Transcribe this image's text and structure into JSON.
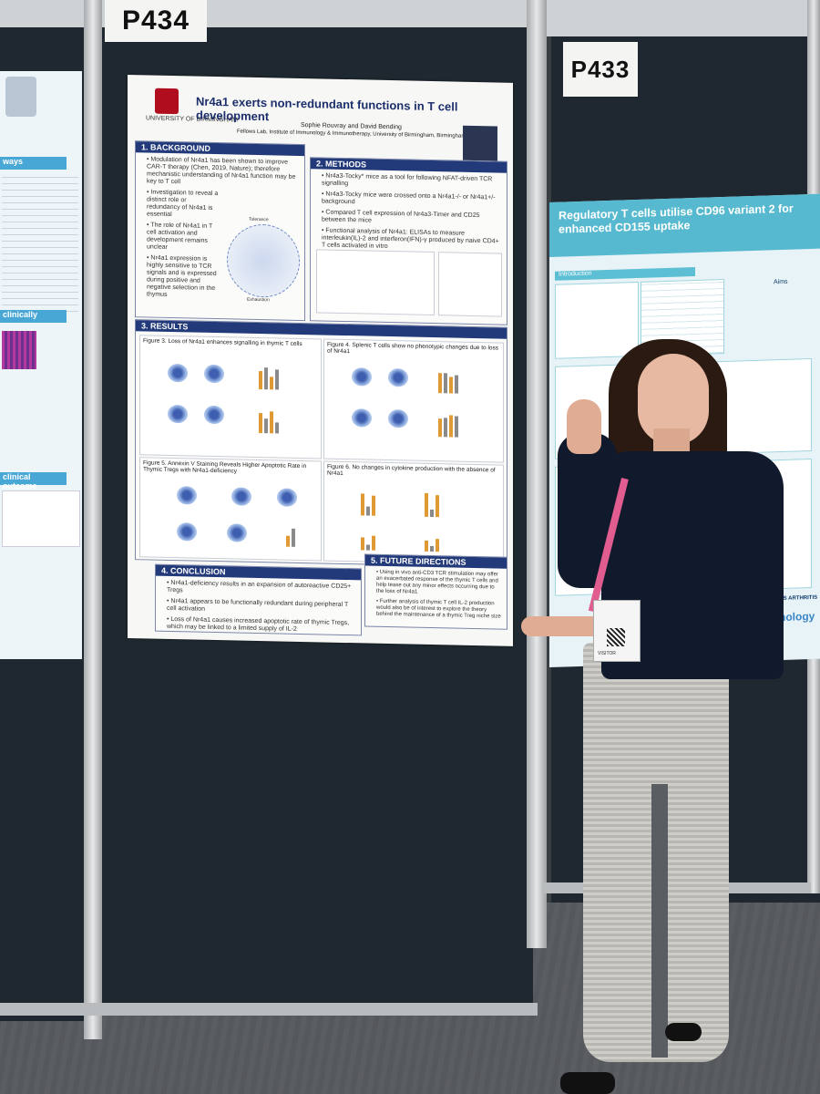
{
  "scene": {
    "board_left_label": "P434",
    "board_right_label": "P433"
  },
  "main_poster": {
    "university": "UNIVERSITY OF BIRMINGHAM",
    "title": "Nr4a1 exerts non-redundant functions in T cell development",
    "authors": "Sophie Rouvray and David Bending",
    "affiliation": "Fellows Lab, Institute of Immunology & Immunotherapy, University of Birmingham, Birmingham, UK",
    "sections": {
      "background": {
        "heading": "1. BACKGROUND",
        "bullets": [
          "Modulation of Nr4a1 has been shown to improve CAR-T therapy (Chen, 2019, Nature); therefore mechanistic understanding of Nr4a1 function may be key to T cell",
          "Investigation to reveal a distinct role or redundancy of Nr4a1 is essential",
          "The role of Nr4a1 in T cell activation and development remains unclear",
          "Nr4a1 expression is highly sensitive to TCR signals and is expressed during positive and negative selection in the thymus"
        ],
        "diagram_labels": [
          "Tolerance",
          "Exhaustion"
        ]
      },
      "methods": {
        "heading": "2. METHODS",
        "bullets": [
          "Nr4a3-Tocky* mice as a tool for following NFAT-driven TCR signalling",
          "Nr4a3-Tocky mice were crossed onto a Nr4a1-/- or Nr4a1+/- background",
          "Compared T cell expression of Nr4a3-Timer and CD25 between the mice",
          "Functional analysis of Nr4a1: ELISAs to measure interleukin(IL)-2 and interferon(IFN)-γ produced by naive CD4+ T cells activated in vitro"
        ]
      },
      "results": {
        "heading": "3. RESULTS",
        "figure3": "Figure 3. Loss of Nr4a1 enhances signalling in thymic T cells",
        "figure4": "Figure 4. Splenic T cells show no phenotypic changes due to loss of Nr4a1",
        "figure5": "Figure 5. Annexin V Staining Reveals Higher Apoptotic Rate in Thymic Tregs with Nr4a1-deficiency",
        "figure6": "Figure 6. No changes in cytokine production with the absence of Nr4a1"
      },
      "conclusion": {
        "heading": "4. CONCLUSION",
        "bullets": [
          "Nr4a1-deficiency results in an expansion of autoreactive CD25+ Tregs",
          "Nr4a1 appears to be functionally redundant during peripheral T cell activation",
          "Loss of Nr4a1 causes increased apoptotic rate of thymic Tregs, which may be linked to a limited supply of IL-2"
        ]
      },
      "future": {
        "heading": "5. FUTURE DIRECTIONS",
        "bullets": [
          "Using in vivo anti-CD3 TCR stimulation may offer an exacerbated response of the thymic T cells and help tease out any minor effects occurring due to the loss of Nr4a1",
          "Further analysis of thymic T cell IL-2 production would also be of interest to explore the theory behind the maintenance of a thymic Treg niche size"
        ]
      }
    }
  },
  "right_poster": {
    "title": "Regulatory T cells utilise CD96 variant 2 for enhanced CD155 uptake",
    "introduction_label": "Introduction",
    "aims_label": "Aims",
    "footer_label": "Immunology",
    "versus": "VERSUS ARTHRITIS"
  },
  "left_poster": {
    "labels": [
      "ways",
      "clinically",
      "clinical outcome"
    ]
  },
  "visitor_badge": "VISITOR"
}
